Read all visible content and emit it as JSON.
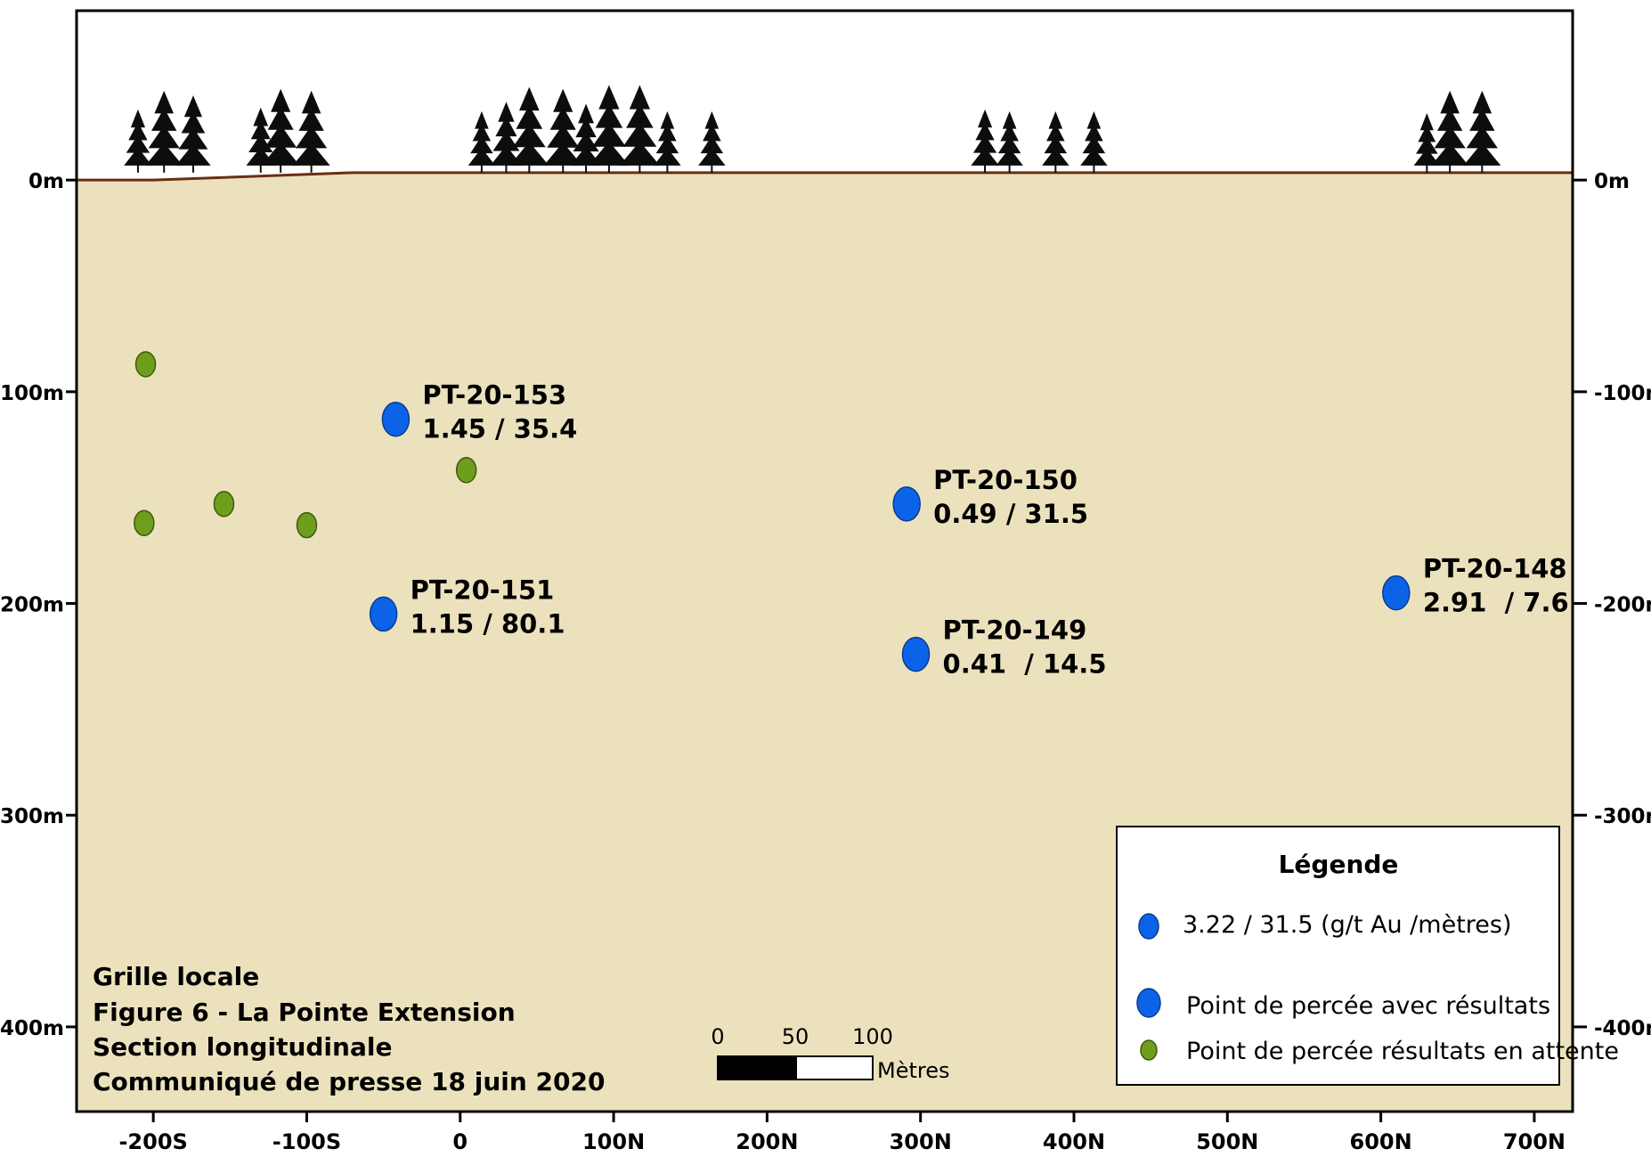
{
  "colors": {
    "ground": "#ebe2bd",
    "surface_line": "#6b2e12",
    "result_hole": "#0d63e8",
    "pending_hole": "#6f9e1c",
    "tree": "#0d0d0d"
  },
  "chart_data": {
    "type": "scatter",
    "x_unit": "m",
    "y_unit": "m",
    "xlim": [
      -250,
      725
    ],
    "ylim": [
      -440,
      80
    ],
    "x_ticks": [
      {
        "value": -200,
        "label": "-200S"
      },
      {
        "value": -100,
        "label": "-100S"
      },
      {
        "value": 0,
        "label": "0"
      },
      {
        "value": 100,
        "label": "100N"
      },
      {
        "value": 200,
        "label": "200N"
      },
      {
        "value": 300,
        "label": "300N"
      },
      {
        "value": 400,
        "label": "400N"
      },
      {
        "value": 500,
        "label": "500N"
      },
      {
        "value": 600,
        "label": "600N"
      },
      {
        "value": 700,
        "label": "700N"
      }
    ],
    "y_ticks": [
      {
        "value": 0,
        "label": "0m"
      },
      {
        "value": -100,
        "label": "-100m"
      },
      {
        "value": -200,
        "label": "-200m"
      },
      {
        "value": -300,
        "label": "-300m"
      },
      {
        "value": -400,
        "label": "-400m"
      }
    ],
    "surface_profile": [
      [
        -250,
        0
      ],
      [
        -200,
        0
      ],
      [
        -70,
        3.5
      ],
      [
        725,
        3.5
      ]
    ],
    "series": [
      {
        "name": "Point de percée avec résultats",
        "points": [
          {
            "x": -42,
            "y": -113,
            "hole": "PT-20-153",
            "result": "1.45 / 35.4"
          },
          {
            "x": -50,
            "y": -205,
            "hole": "PT-20-151",
            "result": "1.15 / 80.1"
          },
          {
            "x": 291,
            "y": -153,
            "hole": "PT-20-150",
            "result": "0.49 / 31.5"
          },
          {
            "x": 297,
            "y": -224,
            "hole": "PT-20-149",
            "result": "0.41  / 14.5"
          },
          {
            "x": 610,
            "y": -195,
            "hole": "PT-20-148",
            "result": "2.91  / 7.6"
          }
        ]
      },
      {
        "name": "Point de percée résultats en attente",
        "points": [
          {
            "x": -205,
            "y": -87
          },
          {
            "x": -206,
            "y": -162
          },
          {
            "x": -154,
            "y": -153
          },
          {
            "x": -100,
            "y": -163
          },
          {
            "x": 4,
            "y": -137
          }
        ]
      }
    ],
    "trees": [
      {
        "x": -210,
        "h": 60
      },
      {
        "x": -193,
        "h": 80
      },
      {
        "x": -174,
        "h": 75
      },
      {
        "x": -130,
        "h": 62
      },
      {
        "x": -117,
        "h": 82
      },
      {
        "x": -97,
        "h": 80
      },
      {
        "x": 14,
        "h": 58
      },
      {
        "x": 30,
        "h": 68
      },
      {
        "x": 45,
        "h": 84
      },
      {
        "x": 67,
        "h": 82
      },
      {
        "x": 82,
        "h": 66
      },
      {
        "x": 97,
        "h": 86
      },
      {
        "x": 117,
        "h": 86
      },
      {
        "x": 135,
        "h": 58
      },
      {
        "x": 164,
        "h": 58
      },
      {
        "x": 342,
        "h": 60
      },
      {
        "x": 358,
        "h": 58
      },
      {
        "x": 388,
        "h": 58
      },
      {
        "x": 413,
        "h": 58
      },
      {
        "x": 630,
        "h": 56
      },
      {
        "x": 645,
        "h": 80
      },
      {
        "x": 666,
        "h": 80
      }
    ]
  },
  "legend": {
    "title": "Légende",
    "example_text": "3.22 / 31.5 (g/t Au /mètres)",
    "items": [
      {
        "label": "Point de percée avec résultats",
        "color": "#0d63e8"
      },
      {
        "label": "Point de percée résultats en attente",
        "color": "#6f9e1c"
      }
    ]
  },
  "title_block": {
    "lines": [
      "Grille locale",
      "Figure 6 - La Pointe Extension",
      "Section longitudinale",
      "Communiqué de presse 18 juin 2020"
    ]
  },
  "scale_bar": {
    "labels": [
      "0",
      "50",
      "100"
    ],
    "unit": "Mètres"
  }
}
